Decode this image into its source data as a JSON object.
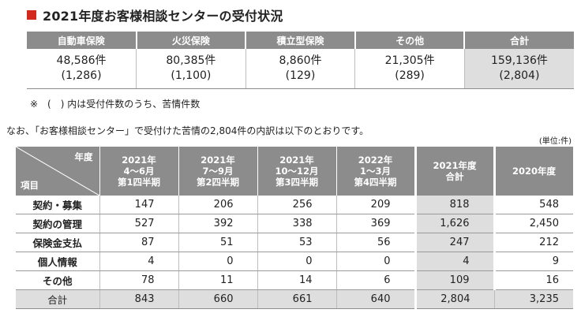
{
  "title": "2021年度お客様相談センターの受付状況",
  "summary": {
    "headers": [
      "自動車保険",
      "火災保険",
      "積立型保険",
      "その他",
      "合計"
    ],
    "counts": [
      "48,586件",
      "80,385件",
      "8,860件",
      "21,305件",
      "159,136件"
    ],
    "complaints": [
      "(1,286)",
      "(1,100)",
      "(129)",
      "(289)",
      "(2,804)"
    ]
  },
  "note": "※　(　) 内は受付件数のうち、苦情件数",
  "intro": "なお、「お客様相談センター」で受付けた苦情の2,804件の内訳は以下のとおりです。",
  "unit": "(単位:件)",
  "breakdown": {
    "corner_top": "年度",
    "corner_bottom": "項目",
    "columns": [
      {
        "line1": "2021年",
        "line2": "4〜6月",
        "line3": "第1四半期"
      },
      {
        "line1": "2021年",
        "line2": "7〜9月",
        "line3": "第2四半期"
      },
      {
        "line1": "2021年",
        "line2": "10〜12月",
        "line3": "第3四半期"
      },
      {
        "line1": "2022年",
        "line2": "1〜3月",
        "line3": "第4四半期"
      },
      {
        "line1": "2021年度",
        "line2": "合計",
        "line3": ""
      },
      {
        "line1": "2020年度",
        "line2": "",
        "line3": ""
      }
    ],
    "rows": [
      {
        "label": "契約・募集",
        "values": [
          "147",
          "206",
          "256",
          "209",
          "818",
          "548"
        ]
      },
      {
        "label": "契約の管理",
        "values": [
          "527",
          "392",
          "338",
          "369",
          "1,626",
          "2,450"
        ]
      },
      {
        "label": "保険金支払",
        "values": [
          "87",
          "51",
          "53",
          "56",
          "247",
          "212"
        ]
      },
      {
        "label": "個人情報",
        "values": [
          "4",
          "0",
          "0",
          "0",
          "4",
          "9"
        ]
      },
      {
        "label": "その他",
        "values": [
          "78",
          "11",
          "14",
          "6",
          "109",
          "16"
        ]
      },
      {
        "label": "合計",
        "values": [
          "843",
          "660",
          "661",
          "640",
          "2,804",
          "3,235"
        ]
      }
    ]
  }
}
